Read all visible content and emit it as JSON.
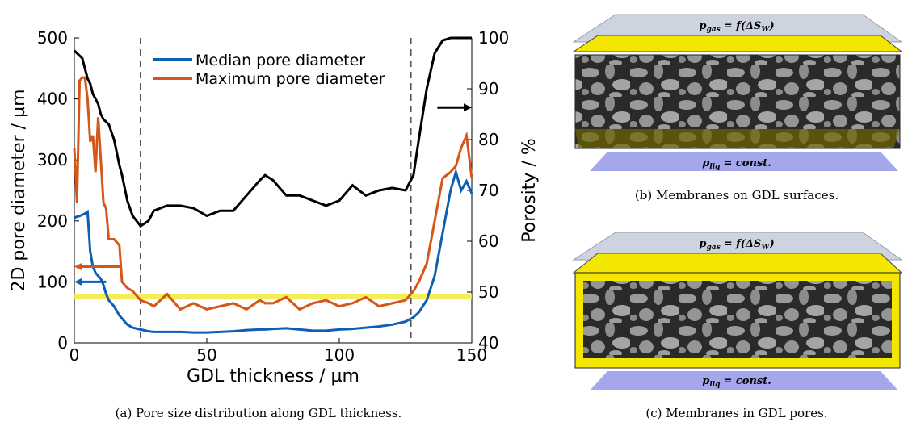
{
  "chart_data": {
    "type": "line",
    "x": [
      0,
      1,
      2,
      3,
      4,
      5,
      6,
      7,
      8,
      9,
      10,
      11,
      12,
      13,
      15,
      17,
      18,
      20,
      22,
      25,
      28,
      30,
      35,
      40,
      45,
      50,
      55,
      60,
      65,
      70,
      72,
      75,
      80,
      85,
      90,
      95,
      100,
      105,
      110,
      115,
      120,
      125,
      128,
      130,
      133,
      136,
      139,
      142,
      144,
      146,
      148,
      150
    ],
    "series": [
      {
        "name": "Median pore diameter",
        "color": "#0d5fb4",
        "values": [
          205,
          207,
          208,
          210,
          212,
          215,
          150,
          125,
          115,
          110,
          105,
          95,
          80,
          70,
          60,
          45,
          40,
          30,
          25,
          22,
          19,
          18,
          18,
          18,
          17,
          17,
          18,
          19,
          21,
          22,
          22,
          23,
          24,
          22,
          20,
          20,
          22,
          23,
          25,
          27,
          30,
          35,
          42,
          50,
          70,
          110,
          180,
          250,
          280,
          250,
          265,
          245
        ]
      },
      {
        "name": "Maximum pore diameter",
        "color": "#d4561a",
        "values": [
          320,
          230,
          430,
          435,
          435,
          400,
          330,
          340,
          280,
          370,
          300,
          230,
          220,
          170,
          170,
          160,
          100,
          90,
          85,
          70,
          65,
          60,
          80,
          55,
          65,
          55,
          60,
          65,
          55,
          70,
          65,
          65,
          75,
          55,
          65,
          70,
          60,
          65,
          75,
          60,
          65,
          70,
          85,
          100,
          130,
          200,
          270,
          280,
          290,
          320,
          340,
          270
        ]
      },
      {
        "color": "#000000",
        "axis": "y2",
        "values": [
          97.5,
          97,
          96.5,
          96,
          94,
          92,
          91,
          89,
          88,
          87,
          85,
          84,
          83.5,
          83,
          80,
          75,
          73,
          68,
          65,
          63,
          64,
          66,
          67,
          67,
          66.5,
          65,
          66,
          66,
          69,
          72,
          73,
          72,
          69,
          69,
          68,
          67,
          68,
          71,
          69,
          70,
          70.5,
          70,
          73,
          80,
          90,
          97,
          99.5,
          100,
          100,
          100,
          100,
          100
        ]
      }
    ],
    "xlabel": "GDL thickness / µm",
    "ylabel": "2D pore diameter / µm",
    "y2label": "Porosity / %",
    "xlim": [
      0,
      150
    ],
    "xticks": [
      0,
      50,
      100,
      150
    ],
    "ylim": [
      0,
      500
    ],
    "yticks": [
      0,
      100,
      200,
      300,
      400,
      500
    ],
    "y2lim": [
      40,
      100
    ],
    "y2ticks": [
      40,
      50,
      60,
      70,
      80,
      90,
      100
    ],
    "legend": "upper center",
    "vlines": [
      25,
      127
    ],
    "vline_color": "#555555",
    "hline": 76,
    "hline_color": "#f4ea3a",
    "arrows": [
      {
        "y": 100,
        "x": [
          12,
          0
        ],
        "color": "#0d5fb4"
      },
      {
        "y": 125,
        "x": [
          18,
          0
        ],
        "color": "#d4561a"
      },
      {
        "y": 86.3,
        "x": [
          137,
          150
        ],
        "color": "#000000",
        "axis": "y2"
      }
    ]
  },
  "caption_a": "(a) Pore size distribution along GDL thickness.",
  "panels": [
    {
      "caption": "(b) Membranes on GDL surfaces.",
      "top_label": {
        "symbol": "p",
        "subscript": "gas",
        "rhs": "= f(ΔS",
        "rhs_subscript": "W",
        "close": ")"
      },
      "bottom_label": {
        "symbol": "p",
        "subscript": "liq",
        "rhs": "= const."
      }
    },
    {
      "caption": "(c) Membranes in GDL pores.",
      "top_label": {
        "symbol": "p",
        "subscript": "gas",
        "rhs": "= f(ΔS",
        "rhs_subscript": "W",
        "close": ")"
      },
      "bottom_label": {
        "symbol": "p",
        "subscript": "liq",
        "rhs": "= const."
      }
    }
  ]
}
